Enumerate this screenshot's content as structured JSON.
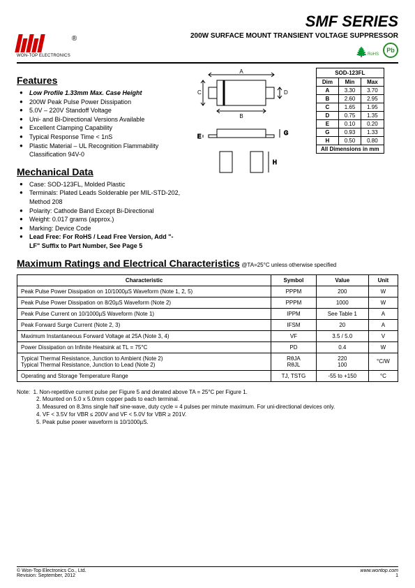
{
  "header": {
    "company": "WON-TOP ELECTRONICS",
    "series": "SMF  SERIES",
    "subtitle": "200W  SURFACE  MOUNT  TRANSIENT  VOLTAGE  SUPPRESSOR",
    "rohs": "RoHS",
    "pb": "Pb"
  },
  "features": {
    "title": "Features",
    "items": [
      {
        "text": "Low Profile 1.33mm Max. Case Height",
        "style": "bold-italic"
      },
      {
        "text": "200W Peak Pulse Power Dissipation"
      },
      {
        "text": "5.0V – 220V Standoff Voltage"
      },
      {
        "text": "Uni- and Bi-Directional Versions Available"
      },
      {
        "text": "Excellent Clamping Capability"
      },
      {
        "text": "Typical Response Time < 1nS"
      },
      {
        "text": "Plastic Material – UL Recognition Flammability Classification 94V-0"
      }
    ]
  },
  "mechanical": {
    "title": "Mechanical Data",
    "items": [
      {
        "text": "Case: SOD-123FL, Molded Plastic"
      },
      {
        "text": "Terminals: Plated Leads Solderable per MIL-STD-202, Method 208"
      },
      {
        "text": "Polarity: Cathode Band Except Bi-Directional"
      },
      {
        "text": "Weight: 0.017 grams (approx.)"
      },
      {
        "text": "Marking: Device Code"
      },
      {
        "text": "Lead Free: For RoHS / Lead Free Version, Add \"-LF\" Suffix to Part Number, See Page 5",
        "style": "bold"
      }
    ]
  },
  "dimensions": {
    "caption": "SOD-123FL",
    "headers": [
      "Dim",
      "Min",
      "Max"
    ],
    "rows": [
      [
        "A",
        "3.30",
        "3.70"
      ],
      [
        "B",
        "2.60",
        "2.95"
      ],
      [
        "C",
        "1.65",
        "1.95"
      ],
      [
        "D",
        "0.75",
        "1.35"
      ],
      [
        "E",
        "0.10",
        "0.20"
      ],
      [
        "G",
        "0.93",
        "1.33"
      ],
      [
        "H",
        "0.50",
        "0.80"
      ]
    ],
    "footer": "All Dimensions in mm"
  },
  "maxratings": {
    "title": "Maximum Ratings and Electrical Characteristics",
    "condition": " @TA=25°C unless otherwise specified",
    "headers": [
      "Characteristic",
      "Symbol",
      "Value",
      "Unit"
    ],
    "rows": [
      {
        "c": "Peak Pulse Power Dissipation on 10/1000µS Waveform (Note 1, 2, 5)",
        "s": "PPPM",
        "v": "200",
        "u": "W"
      },
      {
        "c": "Peak Pulse Power Dissipation on 8/20µS Waveform (Note 2)",
        "s": "PPPM",
        "v": "1000",
        "u": "W"
      },
      {
        "c": "Peak Pulse Current on 10/1000µS Waveform (Note 1)",
        "s": "IPPM",
        "v": "See Table 1",
        "u": "A"
      },
      {
        "c": "Peak Forward Surge Current (Note 2, 3)",
        "s": "IFSM",
        "v": "20",
        "u": "A"
      },
      {
        "c": "Maximum Instantaneous Forward Voltage at 25A (Note 3, 4)",
        "s": "VF",
        "v": "3.5 / 5.0",
        "u": "V"
      },
      {
        "c": "Power Dissipation on Infinite Heatsink at TL = 75°C",
        "s": "PD",
        "v": "0.4",
        "u": "W"
      },
      {
        "c": "Typical Thermal Resistance, Junction to Ambient (Note 2)\nTypical Thermal Resistance, Junction to Lead (Note 2)",
        "s": "RθJA\nRθJL",
        "v": "220\n100",
        "u": "°C/W"
      },
      {
        "c": "Operating and Storage Temperature Range",
        "s": "TJ, TSTG",
        "v": "-55 to +150",
        "u": "°C"
      }
    ]
  },
  "notes": {
    "lead": "Note:",
    "items": [
      "1. Non-repetitive current pulse per Figure 5 and derated above TA = 25°C per Figure 1.",
      "2. Mounted on 5.0 x 5.0mm copper pads to each terminal.",
      "3. Measured on 8.3ms single half sine-wave, duty cycle = 4 pulses per minute maximum. For uni-directional devices only.",
      "4. VF < 3.5V for VBR ≤ 200V and VF < 5.0V for VBR ≥ 201V.",
      "5. Peak pulse power waveform is 10/1000µS."
    ]
  },
  "footer": {
    "copyright": "© Won-Top Electronics Co., Ltd.",
    "revision": "Revision: September, 2012",
    "url": "www.wontop.com",
    "page": "1"
  }
}
